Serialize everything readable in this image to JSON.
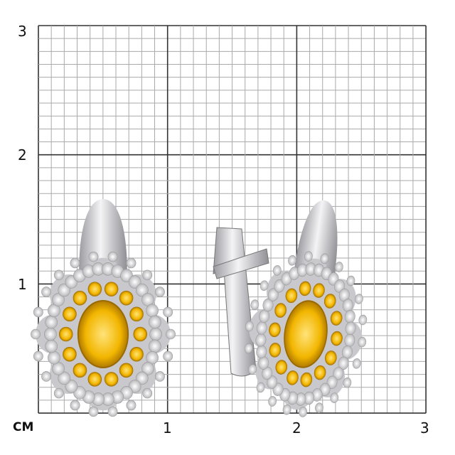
{
  "scale": {
    "unit_label": "CM",
    "y_labels": [
      "3",
      "2",
      "1"
    ],
    "x_labels": [
      "1",
      "2",
      "3"
    ],
    "minor_divisions_per_unit": 10,
    "range_cm": [
      0,
      3
    ]
  },
  "colors": {
    "major_grid": "#333333",
    "minor_grid": "#aaaaaa",
    "metal": "#d8d8dc",
    "yellow_gem": "#f2b600",
    "white_gem": "#eeeeee"
  },
  "subject": "earrings-pair"
}
